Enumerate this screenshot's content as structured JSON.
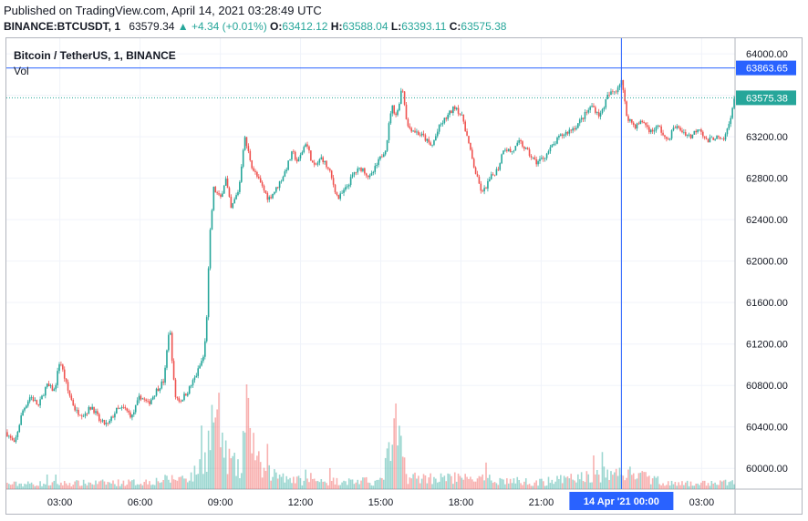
{
  "header": {
    "published": "Published on TradingView.com, April 14, 2021 03:28:49 UTC",
    "symbol": "BINANCE:BTCUSDT, 1",
    "last": "63579.34",
    "change": "▲ +4.34 (+0.01%)",
    "o_label": "O:",
    "o_value": "63412.12",
    "h_label": "H:",
    "h_value": "63588.04",
    "l_label": "L:",
    "l_value": "63393.11",
    "c_label": "C:",
    "c_value": "63575.38"
  },
  "legend": {
    "title": "Bitcoin / TetherUS, 1, BINANCE",
    "volume": "Vol"
  },
  "colors": {
    "up": "#26a69a",
    "down": "#ef5350",
    "crosshair": "#2962ff",
    "grid": "#f0f3fa",
    "border": "#b2b5be"
  },
  "chart_data": {
    "type": "candlestick",
    "price_axis": {
      "ticks": [
        60000,
        60400,
        60800,
        61200,
        61600,
        62000,
        62400,
        62800,
        63200,
        63600,
        64000
      ],
      "labels": [
        "60000.00",
        "60400.00",
        "60800.00",
        "61200.00",
        "61600.00",
        "62000.00",
        "62400.00",
        "62800.00",
        "63200.00",
        "63600.00",
        "64000.00"
      ],
      "ylim": [
        59800,
        64150
      ]
    },
    "time_axis": {
      "ticks": [
        "03:00",
        "06:00",
        "09:00",
        "12:00",
        "15:00",
        "18:00",
        "21:00",
        "00:00",
        "03:00"
      ],
      "tick_hours": [
        3,
        6,
        9,
        12,
        15,
        18,
        21,
        24,
        27
      ],
      "xlim_hours": [
        1.0,
        28.25
      ]
    },
    "crosshair": {
      "price_label": "63863.65",
      "price": 63863.65,
      "time_label": "14 Apr '21   00:00",
      "hour": 24
    },
    "last_price": {
      "label": "63575.38",
      "price": 63575.38
    },
    "price_path": [
      [
        1.0,
        60350
      ],
      [
        1.3,
        60230
      ],
      [
        1.6,
        60550
      ],
      [
        1.9,
        60700
      ],
      [
        2.2,
        60600
      ],
      [
        2.5,
        60800
      ],
      [
        2.8,
        60750
      ],
      [
        3.0,
        61050
      ],
      [
        3.3,
        60750
      ],
      [
        3.6,
        60550
      ],
      [
        3.9,
        60520
      ],
      [
        4.2,
        60600
      ],
      [
        4.5,
        60450
      ],
      [
        4.8,
        60420
      ],
      [
        5.1,
        60560
      ],
      [
        5.4,
        60580
      ],
      [
        5.7,
        60500
      ],
      [
        6.0,
        60700
      ],
      [
        6.3,
        60620
      ],
      [
        6.6,
        60750
      ],
      [
        6.9,
        60850
      ],
      [
        7.1,
        61400
      ],
      [
        7.3,
        60700
      ],
      [
        7.5,
        60650
      ],
      [
        7.8,
        60750
      ],
      [
        8.1,
        60900
      ],
      [
        8.4,
        61100
      ],
      [
        8.5,
        61500
      ],
      [
        8.6,
        62200
      ],
      [
        8.75,
        62700
      ],
      [
        9.0,
        62600
      ],
      [
        9.2,
        62800
      ],
      [
        9.4,
        62500
      ],
      [
        9.7,
        62700
      ],
      [
        9.9,
        63200
      ],
      [
        10.2,
        62900
      ],
      [
        10.5,
        62750
      ],
      [
        10.8,
        62600
      ],
      [
        11.1,
        62700
      ],
      [
        11.4,
        62850
      ],
      [
        11.7,
        63050
      ],
      [
        11.9,
        62950
      ],
      [
        12.2,
        63150
      ],
      [
        12.5,
        62900
      ],
      [
        12.8,
        63000
      ],
      [
        13.1,
        62850
      ],
      [
        13.4,
        62600
      ],
      [
        13.7,
        62700
      ],
      [
        14.0,
        62850
      ],
      [
        14.3,
        62900
      ],
      [
        14.6,
        62800
      ],
      [
        14.9,
        62950
      ],
      [
        15.2,
        63100
      ],
      [
        15.4,
        63500
      ],
      [
        15.6,
        63400
      ],
      [
        15.8,
        63700
      ],
      [
        16.0,
        63300
      ],
      [
        16.3,
        63250
      ],
      [
        16.6,
        63200
      ],
      [
        16.9,
        63100
      ],
      [
        17.2,
        63300
      ],
      [
        17.5,
        63400
      ],
      [
        17.8,
        63500
      ],
      [
        18.1,
        63350
      ],
      [
        18.4,
        63000
      ],
      [
        18.6,
        62800
      ],
      [
        18.8,
        62650
      ],
      [
        19.1,
        62800
      ],
      [
        19.4,
        62900
      ],
      [
        19.6,
        63100
      ],
      [
        19.9,
        63050
      ],
      [
        20.2,
        63150
      ],
      [
        20.5,
        63050
      ],
      [
        20.8,
        62950
      ],
      [
        21.1,
        63000
      ],
      [
        21.4,
        63100
      ],
      [
        21.7,
        63200
      ],
      [
        22.0,
        63250
      ],
      [
        22.3,
        63300
      ],
      [
        22.6,
        63400
      ],
      [
        22.9,
        63500
      ],
      [
        23.2,
        63400
      ],
      [
        23.5,
        63600
      ],
      [
        23.8,
        63650
      ],
      [
        24.0,
        63750
      ],
      [
        24.2,
        63400
      ],
      [
        24.5,
        63300
      ],
      [
        24.8,
        63350
      ],
      [
        25.1,
        63250
      ],
      [
        25.4,
        63300
      ],
      [
        25.7,
        63150
      ],
      [
        26.0,
        63300
      ],
      [
        26.3,
        63250
      ],
      [
        26.6,
        63200
      ],
      [
        26.9,
        63300
      ],
      [
        27.2,
        63150
      ],
      [
        27.5,
        63200
      ],
      [
        27.8,
        63150
      ],
      [
        28.0,
        63300
      ],
      [
        28.15,
        63480
      ],
      [
        28.25,
        63575
      ]
    ],
    "volume_scale": {
      "max": 100
    },
    "volume_profile": [
      [
        1.0,
        6
      ],
      [
        6.0,
        8
      ],
      [
        7.2,
        12
      ],
      [
        8.0,
        16
      ],
      [
        8.5,
        45
      ],
      [
        8.8,
        95
      ],
      [
        9.2,
        40
      ],
      [
        9.8,
        18
      ],
      [
        10.0,
        85
      ],
      [
        10.5,
        22
      ],
      [
        12.0,
        10
      ],
      [
        15.0,
        9
      ],
      [
        15.6,
        70
      ],
      [
        16.0,
        14
      ],
      [
        18.6,
        12
      ],
      [
        21.0,
        8
      ],
      [
        24.0,
        20
      ],
      [
        26.0,
        6
      ],
      [
        28.25,
        8
      ]
    ]
  }
}
